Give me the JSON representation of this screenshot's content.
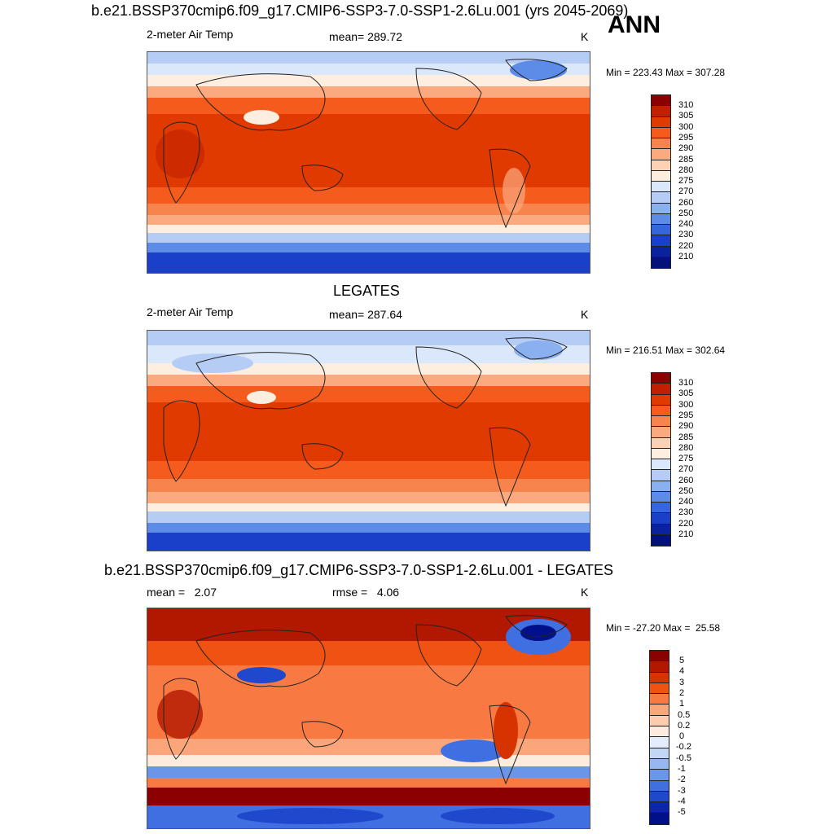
{
  "season": "ANN",
  "panel1": {
    "title": "b.e21.BSSP370cmip6.f09_g17.CMIP6-SSP3-7.0-SSP1-2.6Lu.001 (yrs 2045-2069)",
    "variable": "2-meter Air Temp",
    "mean": "mean= 289.72",
    "units": "K",
    "minmax": "Min = 223.43 Max = 307.28"
  },
  "panel2": {
    "title": "LEGATES",
    "variable": "2-meter Air Temp",
    "mean": "mean= 287.64",
    "units": "K",
    "minmax": "Min = 216.51 Max = 302.64"
  },
  "panel3": {
    "title": "b.e21.BSSP370cmip6.f09_g17.CMIP6-SSP3-7.0-SSP1-2.6Lu.001 - LEGATES",
    "mean": "mean =   2.07",
    "rmse": "rmse =   4.06",
    "units": "K",
    "minmax": "Min = -27.20 Max =  25.58"
  },
  "temp_colorbar": {
    "labels": [
      "310",
      "305",
      "300",
      "295",
      "290",
      "285",
      "280",
      "275",
      "270",
      "260",
      "250",
      "240",
      "230",
      "220",
      "210"
    ],
    "colors": [
      "#8b0000",
      "#c21f00",
      "#e03a00",
      "#f45b1c",
      "#f7844c",
      "#fbaa80",
      "#fdd2b4",
      "#fdeee0",
      "#dbe8fb",
      "#b5cdf5",
      "#8bb0ef",
      "#5c8ce8",
      "#3566dd",
      "#1a3fc8",
      "#0a21a0",
      "#03117a"
    ]
  },
  "diff_colorbar": {
    "labels": [
      "5",
      "4",
      "3",
      "2",
      "1",
      "0.5",
      "0.2",
      "0",
      "-0.2",
      "-0.5",
      "-1",
      "-2",
      "-3",
      "-4",
      "-5"
    ],
    "colors": [
      "#8b0000",
      "#b21800",
      "#d63300",
      "#ef5212",
      "#f87a42",
      "#fba57a",
      "#fdcbad",
      "#fdebdd",
      "#e4edfb",
      "#c2d6f6",
      "#97b7f0",
      "#6b95e9",
      "#3f6fe0",
      "#1f48cc",
      "#0a27a8",
      "#00108a"
    ]
  }
}
